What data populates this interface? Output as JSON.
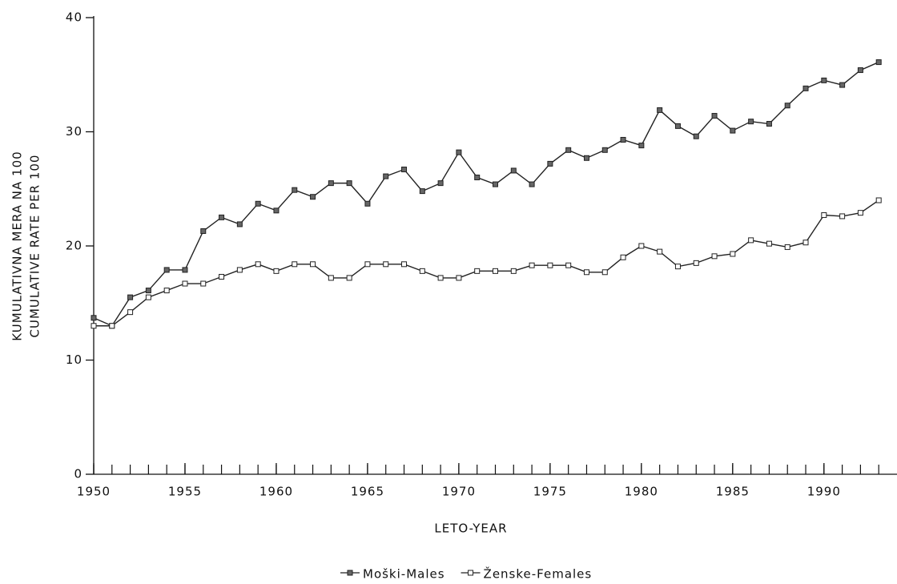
{
  "chart_data": {
    "type": "line",
    "xlabel": "LETO-YEAR",
    "ylabel": [
      "KUMULATIVNA MERA NA 100",
      "CUMULATIVE RATE PER 100"
    ],
    "x": [
      1950,
      1951,
      1952,
      1953,
      1954,
      1955,
      1956,
      1957,
      1958,
      1959,
      1960,
      1961,
      1962,
      1963,
      1964,
      1965,
      1966,
      1967,
      1968,
      1969,
      1970,
      1971,
      1972,
      1973,
      1974,
      1975,
      1976,
      1977,
      1978,
      1979,
      1980,
      1981,
      1982,
      1983,
      1984,
      1985,
      1986,
      1987,
      1988,
      1989,
      1990,
      1991,
      1992,
      1993
    ],
    "series": [
      {
        "name": "Moški-Males",
        "color": "#222222",
        "marker": "filled",
        "values": [
          13.7,
          13.0,
          15.5,
          16.1,
          17.9,
          17.9,
          21.3,
          22.5,
          21.9,
          23.7,
          23.1,
          24.9,
          24.3,
          25.5,
          25.5,
          23.7,
          26.1,
          26.7,
          24.8,
          25.5,
          28.2,
          26.0,
          25.4,
          26.6,
          25.4,
          27.2,
          28.4,
          27.7,
          28.4,
          29.3,
          28.8,
          31.9,
          30.5,
          29.6,
          31.4,
          30.1,
          30.9,
          30.7,
          32.3,
          33.8,
          34.5,
          34.1,
          35.4,
          36.1
        ]
      },
      {
        "name": "Ženske-Females",
        "color": "#222222",
        "marker": "open",
        "values": [
          13.0,
          13.0,
          14.2,
          15.5,
          16.1,
          16.7,
          16.7,
          17.3,
          17.9,
          18.4,
          17.8,
          18.4,
          18.4,
          17.2,
          17.2,
          18.4,
          18.4,
          18.4,
          17.8,
          17.2,
          17.2,
          17.8,
          17.8,
          17.8,
          18.3,
          18.3,
          18.3,
          17.7,
          17.7,
          19.0,
          20.0,
          19.5,
          18.2,
          18.5,
          19.1,
          19.3,
          20.5,
          20.2,
          19.9,
          20.3,
          22.7,
          22.6,
          22.9,
          24.0
        ]
      }
    ],
    "xlim": [
      1950,
      1994
    ],
    "xticks": [
      1950,
      1955,
      1960,
      1965,
      1970,
      1975,
      1980,
      1985,
      1990
    ],
    "ylim": [
      0,
      40
    ],
    "yticks": [
      0,
      10,
      20,
      30,
      40
    ],
    "grid": false,
    "legend": "bottom"
  }
}
